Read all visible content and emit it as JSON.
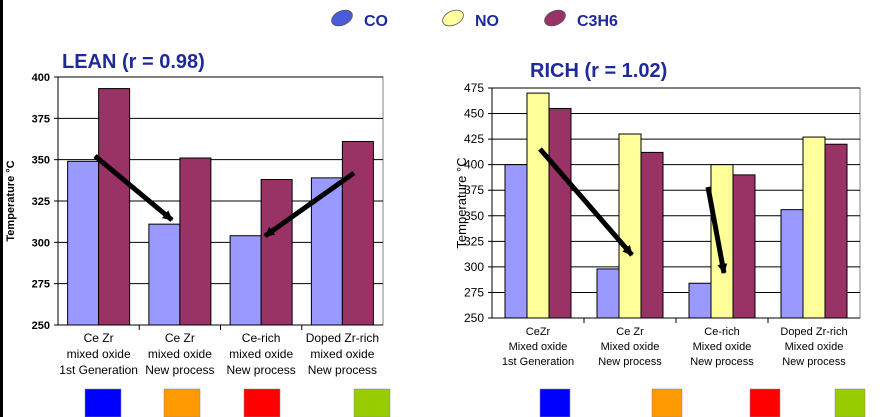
{
  "legend": [
    {
      "name": "CO",
      "color": "#4a5ad8"
    },
    {
      "name": "NO",
      "color": "#ffffa0"
    },
    {
      "name": "C3H6",
      "color": "#993366"
    }
  ],
  "chart_data": [
    {
      "type": "bar",
      "title": "LEAN (r = 0.98)",
      "ylabel": "Temperature °C",
      "ylim": [
        250,
        400
      ],
      "yticks": [
        250,
        275,
        300,
        325,
        350,
        375,
        400
      ],
      "grid": true,
      "categories": [
        [
          "Ce Zr",
          "mixed oxide",
          "1st Generation"
        ],
        [
          "Ce Zr",
          "mixed oxide",
          "New process"
        ],
        [
          "Ce-rich",
          "mixed oxide",
          "New process"
        ],
        [
          "Doped Zr-rich",
          "mixed oxide",
          "New process"
        ]
      ],
      "series": [
        {
          "name": "CO",
          "color": "#9999ff",
          "values": [
            349,
            311,
            304,
            339
          ]
        },
        {
          "name": "C3H6",
          "color": "#993366",
          "values": [
            393,
            351,
            338,
            361
          ]
        }
      ],
      "swatches": [
        "#0000ff",
        "#ff9900",
        "#ff0000",
        "#99cc00"
      ]
    },
    {
      "type": "bar",
      "title": "RICH (r = 1.02)",
      "ylabel": "Temperature °C",
      "ylim": [
        250,
        475
      ],
      "yticks": [
        250,
        275,
        300,
        325,
        350,
        375,
        400,
        425,
        450,
        475
      ],
      "grid": true,
      "categories": [
        [
          "CeZr",
          "Mixed oxide",
          "1st Generation"
        ],
        [
          "Ce Zr",
          "Mixed oxide",
          "New process"
        ],
        [
          "Ce-rich",
          "Mixed oxide",
          "New process"
        ],
        [
          "Doped Zr-rich",
          "Mixed oxide",
          "New process"
        ]
      ],
      "series": [
        {
          "name": "CO",
          "color": "#9999ff",
          "values": [
            400,
            298,
            284,
            356
          ]
        },
        {
          "name": "NO",
          "color": "#ffff99",
          "values": [
            470,
            430,
            400,
            427
          ]
        },
        {
          "name": "C3H6",
          "color": "#993366",
          "values": [
            455,
            412,
            390,
            420
          ]
        }
      ],
      "swatches": [
        "#0000ff",
        "#ff9900",
        "#ff0000",
        "#99cc00"
      ]
    }
  ]
}
